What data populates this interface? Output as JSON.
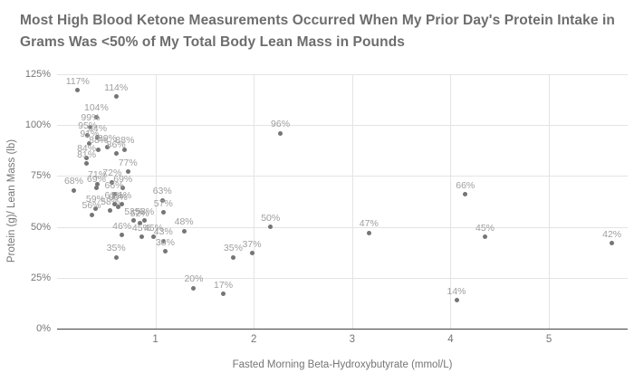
{
  "title": "Most High Blood Ketone Measurements Occurred When My Prior Day's Protein Intake in Grams Was <50% of My Total Body Lean Mass in Pounds",
  "colors": {
    "background": "#ffffff",
    "title_text": "#6d6d6d",
    "axis_text": "#757575",
    "point": "#757575",
    "point_label": "#9e9e9e",
    "gridline": "#e4e4e4",
    "axis_line": "#424242"
  },
  "chart_data": {
    "type": "scatter",
    "title": "Most High Blood Ketone Measurements Occurred When My Prior Day's Protein Intake in Grams Was <50% of My Total Body Lean Mass in Pounds",
    "xlabel": "Fasted Morning Beta-Hydroxybutyrate (mmol/L)",
    "ylabel": "Protein (g)/ Lean Mass (lb)",
    "xlim": [
      0,
      5.8
    ],
    "ylim": [
      0,
      125
    ],
    "grid": true,
    "legend": "none",
    "x_ticks": [
      {
        "v": 1,
        "label": "1"
      },
      {
        "v": 2,
        "label": "2"
      },
      {
        "v": 3,
        "label": "3"
      },
      {
        "v": 4,
        "label": "4"
      },
      {
        "v": 5,
        "label": "5"
      }
    ],
    "y_ticks": [
      {
        "v": 0,
        "label": "0%"
      },
      {
        "v": 25,
        "label": "25%"
      },
      {
        "v": 50,
        "label": "50%"
      },
      {
        "v": 75,
        "label": "75%"
      },
      {
        "v": 100,
        "label": "100%"
      },
      {
        "v": 125,
        "label": "125%"
      }
    ],
    "points": [
      {
        "x": 0.21,
        "y": 117,
        "label": "117%"
      },
      {
        "x": 0.6,
        "y": 114,
        "label": "114%"
      },
      {
        "x": 0.4,
        "y": 104,
        "label": "104%"
      },
      {
        "x": 0.34,
        "y": 99,
        "label": "99%"
      },
      {
        "x": 0.31,
        "y": 95,
        "label": "95%"
      },
      {
        "x": 0.41,
        "y": 94,
        "label": "94%"
      },
      {
        "x": 0.33,
        "y": 91,
        "label": "91%"
      },
      {
        "x": 0.42,
        "y": 88,
        "label": "88%"
      },
      {
        "x": 0.51,
        "y": 89,
        "label": "89%"
      },
      {
        "x": 0.6,
        "y": 86,
        "label": "86%"
      },
      {
        "x": 0.69,
        "y": 88,
        "label": "88%"
      },
      {
        "x": 0.3,
        "y": 84,
        "label": "84%"
      },
      {
        "x": 0.3,
        "y": 81,
        "label": "81%"
      },
      {
        "x": 0.72,
        "y": 77,
        "label": "77%"
      },
      {
        "x": 0.41,
        "y": 71,
        "label": "71%"
      },
      {
        "x": 0.56,
        "y": 72,
        "label": "72%"
      },
      {
        "x": 0.17,
        "y": 68,
        "label": "68%"
      },
      {
        "x": 0.4,
        "y": 69,
        "label": "69%"
      },
      {
        "x": 0.67,
        "y": 69,
        "label": "69%"
      },
      {
        "x": 0.58,
        "y": 66,
        "label": "66%"
      },
      {
        "x": 0.39,
        "y": 59,
        "label": "59%"
      },
      {
        "x": 0.54,
        "y": 58,
        "label": "58%"
      },
      {
        "x": 0.58,
        "y": 61,
        "label": "61%"
      },
      {
        "x": 0.66,
        "y": 61,
        "label": "61%"
      },
      {
        "x": 0.62,
        "y": 60,
        "label": "60%"
      },
      {
        "x": 0.35,
        "y": 56,
        "label": "56%"
      },
      {
        "x": 1.07,
        "y": 63,
        "label": "63%"
      },
      {
        "x": 1.08,
        "y": 57,
        "label": "57%"
      },
      {
        "x": 0.78,
        "y": 53,
        "label": "53%"
      },
      {
        "x": 0.89,
        "y": 53,
        "label": "53%"
      },
      {
        "x": 0.84,
        "y": 52,
        "label": "52%"
      },
      {
        "x": 0.66,
        "y": 46,
        "label": "46%"
      },
      {
        "x": 0.86,
        "y": 45,
        "label": "45%"
      },
      {
        "x": 0.98,
        "y": 45,
        "label": "45%"
      },
      {
        "x": 1.08,
        "y": 43,
        "label": "43%"
      },
      {
        "x": 1.29,
        "y": 48,
        "label": "48%"
      },
      {
        "x": 1.1,
        "y": 38,
        "label": "38%"
      },
      {
        "x": 0.6,
        "y": 35,
        "label": "35%"
      },
      {
        "x": 1.39,
        "y": 20,
        "label": "20%"
      },
      {
        "x": 1.69,
        "y": 17,
        "label": "17%"
      },
      {
        "x": 1.79,
        "y": 35,
        "label": "35%"
      },
      {
        "x": 1.98,
        "y": 37,
        "label": "37%"
      },
      {
        "x": 2.17,
        "y": 50,
        "label": "50%"
      },
      {
        "x": 2.27,
        "y": 96,
        "label": "96%"
      },
      {
        "x": 3.17,
        "y": 47,
        "label": "47%"
      },
      {
        "x": 4.06,
        "y": 14,
        "label": "14%"
      },
      {
        "x": 4.15,
        "y": 66,
        "label": "66%"
      },
      {
        "x": 4.35,
        "y": 45,
        "label": "45%"
      },
      {
        "x": 5.64,
        "y": 42,
        "label": "42%"
      }
    ]
  }
}
